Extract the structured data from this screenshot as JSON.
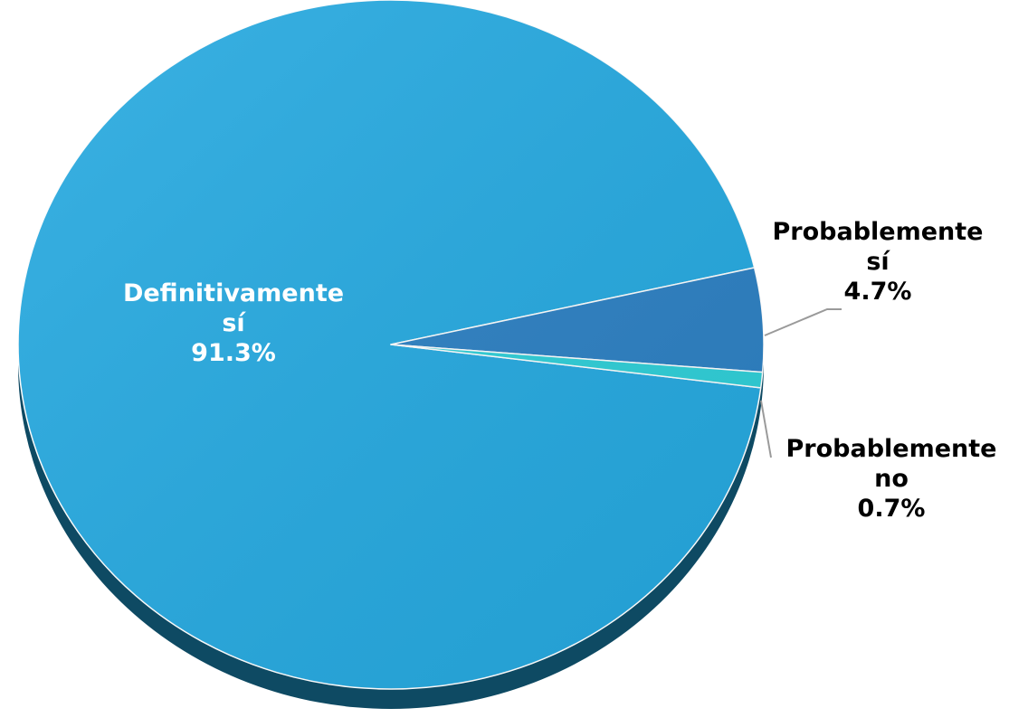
{
  "chart_data": {
    "type": "pie",
    "slices": [
      {
        "label_lines": [
          "Definitivamente",
          "sí"
        ],
        "percent_label": "91.3%",
        "value": 91.3,
        "color": "#25A9E0"
      },
      {
        "label_lines": [
          "Probablemente",
          "sí"
        ],
        "percent_label": "4.7%",
        "value": 4.7,
        "color": "#2C80C3"
      },
      {
        "label_lines": [
          "Probablemente",
          "no"
        ],
        "percent_label": "0.7%",
        "value": 0.7,
        "color": "#2ECFD8"
      }
    ],
    "label_colors": [
      "#ffffff",
      "#000000",
      "#000000"
    ],
    "shadow_color": "#0E4A63",
    "leader_line_color": "#9A9A9A",
    "legend": "none",
    "style": "3d-tilted"
  }
}
